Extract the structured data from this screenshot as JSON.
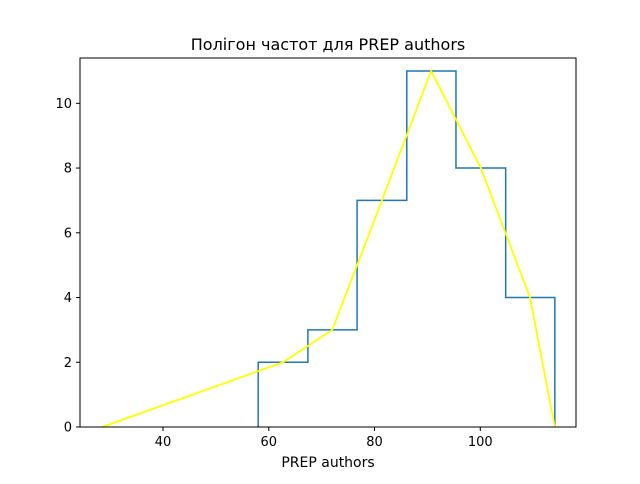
{
  "chart_data": {
    "type": "line",
    "title": "Полігон частот для PREP authors",
    "xlabel": "PREP authors",
    "ylabel": "",
    "xlim": [
      24.3,
      118.1
    ],
    "ylim": [
      0,
      11.4
    ],
    "xticks": [
      40,
      60,
      80,
      100
    ],
    "yticks": [
      0,
      2,
      4,
      6,
      8,
      10
    ],
    "grid": false,
    "legend": "none",
    "histogram_step": {
      "color": "#1f77b4",
      "bin_edges": [
        58.0,
        67.4,
        76.7,
        86.1,
        95.4,
        104.8,
        114.1
      ],
      "counts": [
        2,
        3,
        7,
        11,
        8,
        4
      ]
    },
    "polygon": {
      "color": "#ffff00",
      "x": [
        28.5,
        62.7,
        72.0,
        81.4,
        90.7,
        100.1,
        109.4,
        114.1
      ],
      "y": [
        0,
        2,
        3,
        7,
        11,
        8,
        4,
        0
      ]
    }
  }
}
